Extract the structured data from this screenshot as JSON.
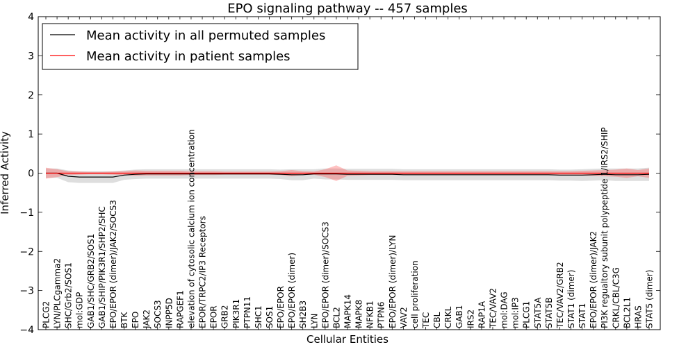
{
  "chart_data": {
    "type": "line",
    "title": "EPO signaling pathway -- 457 samples",
    "xlabel": "Cellular Entities",
    "ylabel": "Inferred Activity",
    "ylim": [
      -4,
      4
    ],
    "yticks": [
      "−4",
      "−3",
      "−2",
      "−1",
      "0",
      "1",
      "2",
      "3",
      "4"
    ],
    "grid": false,
    "legend": {
      "placement": "top-left",
      "entries": [
        {
          "label": "Mean activity in all permuted samples",
          "color": "#000000"
        },
        {
          "label": "Mean activity in patient samples",
          "color": "#ff0000"
        }
      ]
    },
    "categories": [
      "PLCG2",
      "LYN/PLCgamma2",
      "SHC/Grb2/SOS1",
      "mol:GDP",
      "GAB1/SHC/GRB2/SOS1",
      "GAB1/SHIP/PIK3R1/SHP2/SHC",
      "EPO/EPOR (dimer)/JAK2/SOCS3",
      "BTK",
      "EPO",
      "JAK2",
      "SOCS3",
      "INPP5D",
      "RAPGEF1",
      "elevation of cytosolic calcium ion concentration",
      "EPOR/TRPC2/IP3 Receptors",
      "EPOR",
      "GRB2",
      "PIK3R1",
      "PTPN11",
      "SHC1",
      "SOS1",
      "EPO/EPOR",
      "EPO/EPOR (dimer)",
      "SH2B3",
      "LYN",
      "EPO/EPOR (dimer)/SOCS3",
      "BCL2",
      "MAPK14",
      "MAPK8",
      "NFKB1",
      "PTPN6",
      "EPO/EPOR (dimer)/LYN",
      "VAV2",
      "cell proliferation",
      "TEC",
      "CBL",
      "CRKL",
      "GAB1",
      "IRS2",
      "RAP1A",
      "TEC/VAV2",
      "mol:DAG",
      "mol:IP3",
      "PLCG1",
      "STAT5A",
      "STAT5B",
      "TEC/VAV2/GRB2",
      "STAT1 (dimer)",
      "STAT1",
      "EPO/EPOR (dimer)/JAK2",
      "PI3K regualtory subunit polypeptide 1/IRS2/SHIP",
      "CRKL/CBL/C3G",
      "BCL2L1",
      "HRAS",
      "STAT5 (dimer)"
    ],
    "series": [
      {
        "name": "Mean activity in all permuted samples",
        "color": "#000000",
        "values": [
          0.0,
          0.0,
          -0.08,
          -0.1,
          -0.1,
          -0.1,
          -0.1,
          -0.05,
          -0.03,
          -0.02,
          -0.02,
          -0.02,
          -0.02,
          -0.02,
          -0.02,
          -0.02,
          -0.02,
          -0.02,
          -0.02,
          -0.02,
          -0.02,
          -0.03,
          -0.04,
          -0.04,
          -0.02,
          -0.02,
          -0.02,
          -0.03,
          -0.03,
          -0.03,
          -0.03,
          -0.03,
          -0.04,
          -0.04,
          -0.04,
          -0.04,
          -0.04,
          -0.04,
          -0.04,
          -0.04,
          -0.04,
          -0.04,
          -0.04,
          -0.04,
          -0.04,
          -0.04,
          -0.05,
          -0.05,
          -0.05,
          -0.04,
          -0.03,
          -0.04,
          -0.04,
          -0.04,
          -0.03
        ],
        "band": [
          0.12,
          0.12,
          0.15,
          0.15,
          0.15,
          0.15,
          0.15,
          0.12,
          0.12,
          0.12,
          0.12,
          0.12,
          0.12,
          0.12,
          0.12,
          0.12,
          0.12,
          0.12,
          0.12,
          0.12,
          0.12,
          0.12,
          0.14,
          0.14,
          0.12,
          0.14,
          0.14,
          0.14,
          0.14,
          0.14,
          0.14,
          0.14,
          0.14,
          0.14,
          0.14,
          0.14,
          0.14,
          0.14,
          0.14,
          0.14,
          0.14,
          0.14,
          0.14,
          0.14,
          0.14,
          0.14,
          0.14,
          0.14,
          0.15,
          0.15,
          0.15,
          0.16,
          0.16,
          0.16,
          0.17
        ]
      },
      {
        "name": "Mean activity in patient samples",
        "color": "#ff0000",
        "values": [
          0.0,
          0.0,
          0.0,
          0.0,
          0.0,
          0.0,
          0.0,
          0.0,
          0.0,
          0.0,
          0.0,
          0.0,
          0.0,
          0.0,
          0.0,
          0.0,
          0.0,
          0.0,
          0.0,
          0.0,
          0.0,
          0.0,
          0.0,
          0.0,
          0.0,
          0.0,
          0.0,
          0.0,
          0.0,
          0.0,
          0.0,
          0.0,
          0.0,
          0.0,
          0.0,
          0.0,
          0.0,
          0.0,
          0.0,
          0.0,
          0.0,
          0.0,
          0.0,
          0.0,
          0.0,
          0.0,
          0.0,
          0.0,
          0.0,
          0.0,
          0.0,
          0.0,
          0.0,
          0.0,
          0.0
        ],
        "band": [
          0.14,
          0.1,
          0.05,
          0.04,
          0.03,
          0.03,
          0.04,
          0.05,
          0.07,
          0.06,
          0.06,
          0.06,
          0.06,
          0.05,
          0.05,
          0.05,
          0.04,
          0.04,
          0.04,
          0.04,
          0.04,
          0.05,
          0.08,
          0.05,
          0.04,
          0.1,
          0.2,
          0.07,
          0.06,
          0.05,
          0.05,
          0.05,
          0.05,
          0.05,
          0.05,
          0.05,
          0.05,
          0.05,
          0.05,
          0.05,
          0.05,
          0.05,
          0.05,
          0.05,
          0.05,
          0.05,
          0.05,
          0.05,
          0.06,
          0.07,
          0.08,
          0.09,
          0.12,
          0.08,
          0.12
        ]
      }
    ]
  }
}
